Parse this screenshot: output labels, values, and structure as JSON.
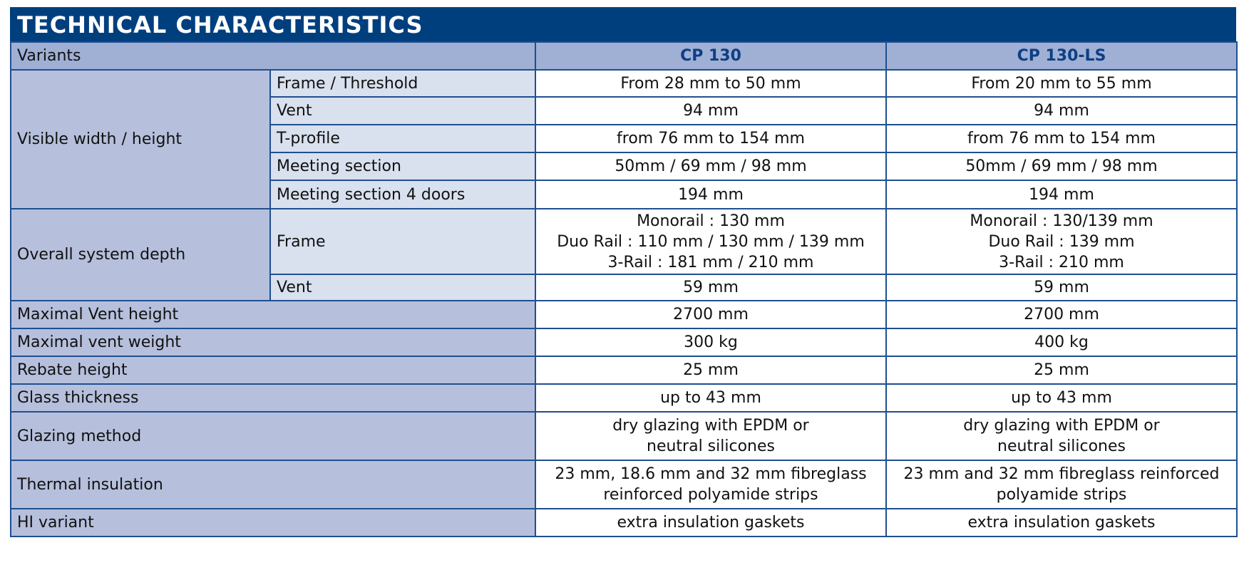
{
  "title": "TECHNICAL CHARACTERISTICS",
  "header": {
    "label": "Variants",
    "col1": "CP 130",
    "col2": "CP 130-LS"
  },
  "visible": {
    "label": "Visible width / height",
    "rows": [
      {
        "sub": "Frame / Threshold",
        "v1": "From 28 mm to 50 mm",
        "v2": "From 20 mm to 55 mm"
      },
      {
        "sub": "Vent",
        "v1": "94 mm",
        "v2": "94 mm"
      },
      {
        "sub": "T-profile",
        "v1": "from 76 mm to 154 mm",
        "v2": "from 76 mm to 154 mm"
      },
      {
        "sub": "Meeting section",
        "v1": "50mm / 69 mm / 98 mm",
        "v2": "50mm / 69 mm / 98 mm"
      },
      {
        "sub": "Meeting section 4 doors",
        "v1": "194 mm",
        "v2": "194 mm"
      }
    ]
  },
  "depth": {
    "label": "Overall system depth",
    "frame": {
      "sub": "Frame",
      "v1": [
        "Monorail :  130 mm",
        "Duo Rail : 110 mm / 130 mm / 139 mm",
        "3-Rail :   181 mm / 210 mm"
      ],
      "v2": [
        "Monorail : 130/139 mm",
        "Duo Rail : 139 mm",
        "3-Rail : 210 mm"
      ]
    },
    "vent": {
      "sub": "Vent",
      "v1": "59 mm",
      "v2": "59 mm"
    }
  },
  "rows": [
    {
      "label": "Maximal Vent height",
      "v1": [
        "2700 mm"
      ],
      "v2": [
        "2700 mm"
      ]
    },
    {
      "label": "Maximal vent weight",
      "v1": [
        "300 kg"
      ],
      "v2": [
        "400 kg"
      ]
    },
    {
      "label": "Rebate height",
      "v1": [
        "25 mm"
      ],
      "v2": [
        "25 mm"
      ]
    },
    {
      "label": "Glass thickness",
      "v1": [
        "up to 43 mm"
      ],
      "v2": [
        "up to 43 mm"
      ]
    },
    {
      "label": "Glazing method",
      "v1": [
        "dry glazing with EPDM or",
        "neutral silicones"
      ],
      "v2": [
        "dry glazing with EPDM or",
        "neutral silicones"
      ]
    },
    {
      "label": "Thermal insulation",
      "v1": [
        "23 mm, 18.6 mm and 32 mm fibreglass",
        "reinforced polyamide strips"
      ],
      "v2": [
        "23 mm and 32 mm fibreglass reinforced",
        "polyamide strips"
      ]
    },
    {
      "label": "HI variant",
      "v1": [
        "extra insulation gaskets"
      ],
      "v2": [
        "extra insulation gaskets"
      ]
    }
  ]
}
